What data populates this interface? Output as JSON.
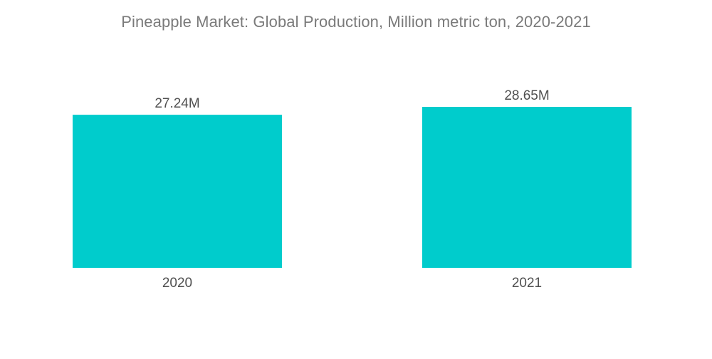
{
  "chart_data": {
    "type": "bar",
    "title": "Pineapple Market:  Global Production, Million metric ton, 2020-2021",
    "categories": [
      "2020",
      "2021"
    ],
    "values": [
      27.24,
      28.65
    ],
    "data_labels": [
      "27.24M",
      "28.65M"
    ],
    "xlabel": "",
    "ylabel": "",
    "ylim": [
      0,
      28.65
    ],
    "grid": false,
    "legend": "none",
    "bar_color": "#00cccc"
  }
}
